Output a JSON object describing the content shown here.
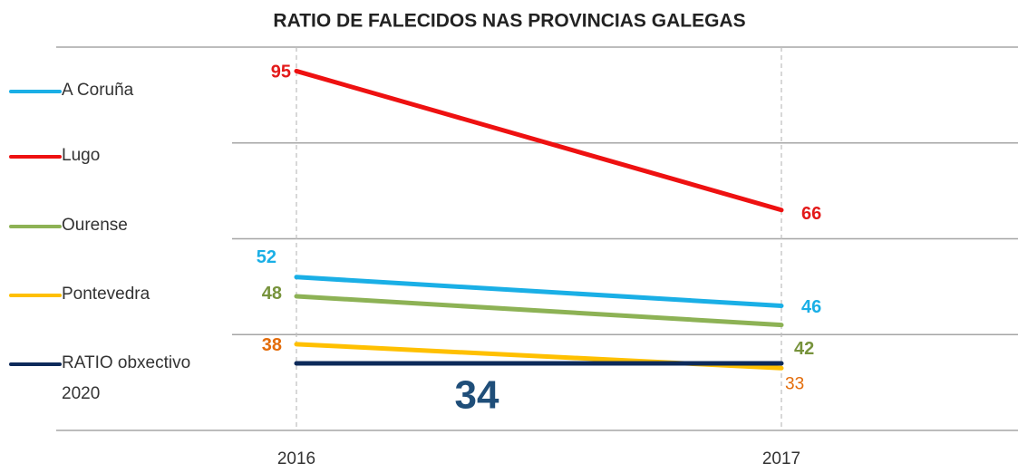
{
  "chart_data": {
    "type": "line",
    "title": "RATIO DE FALECIDOS NAS PROVINCIAS GALEGAS",
    "categories": [
      "2016",
      "2017"
    ],
    "series": [
      {
        "name": "A Coruña",
        "color": "#1aafe6",
        "label_color": "#1aafe6",
        "values": [
          52,
          46
        ]
      },
      {
        "name": "Lugo",
        "color": "#ee1111",
        "label_color": "#e31a1a",
        "values": [
          95,
          66
        ]
      },
      {
        "name": "Ourense",
        "color": "#8db255",
        "label_color": "#77933c",
        "values": [
          48,
          42
        ]
      },
      {
        "name": "Pontevedra",
        "color": "#ffc000",
        "label_color": "#e36c0a",
        "values": [
          38,
          33
        ]
      },
      {
        "name": "RATIO obxectivo 2020",
        "color": "#0d2a5a",
        "label_color": "#1f4e79",
        "values": [
          34,
          34
        ]
      }
    ],
    "ylim": [
      20,
      100
    ],
    "yticks": [
      20,
      40,
      60,
      80,
      100
    ],
    "grid": true,
    "legend": "left"
  }
}
